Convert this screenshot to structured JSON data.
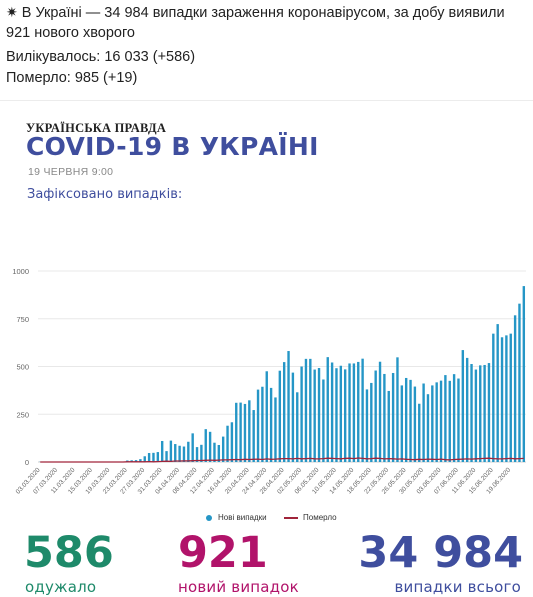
{
  "post": {
    "star": "✷",
    "headline": "В Україні — 34 984 випадки зараження коронавірусом, за добу виявили 921 нового хворого",
    "recovered_line": "Вилікувалось: 16 033 (+586)",
    "died_line": "Померло: 985 (+19)"
  },
  "infographic": {
    "brand": "УКРАЇНСЬКА ПРАВДА",
    "title": "COVID-19 В УКРАЇНІ",
    "date": "19 ЧЕРВНЯ 9:00",
    "subtitle": "Зафіксовано випадків:",
    "stats": {
      "recovered_value": "586",
      "recovered_label": "одужало",
      "new_value": "921",
      "new_label": "новий випадок",
      "total_value": "34 984",
      "total_label": "випадки всього"
    }
  },
  "colors": {
    "bar": "#2596c6",
    "deaths_line": "#a0243a",
    "title": "#3f4e9e",
    "recovered": "#1e8a6a",
    "new_cases": "#b1136a"
  },
  "chart_data": {
    "type": "bar",
    "title": "",
    "ylim": [
      0,
      1000
    ],
    "yticks": [
      0,
      250,
      500,
      750,
      1000
    ],
    "grid": true,
    "legend_position": "bottom-center",
    "x_start": "03.03.2020",
    "x_end": "19.06.2020",
    "xticks": [
      "03.03.2020",
      "07.03.2020",
      "11.03.2020",
      "15.03.2020",
      "19.03.2020",
      "23.03.2020",
      "27.03.2020",
      "31.03.2020",
      "04.04.2020",
      "08.04.2020",
      "12.04.2020",
      "16.04.2020",
      "20.04.2020",
      "24.04.2020",
      "28.04.2020",
      "02.05.2020",
      "06.05.2020",
      "10.05.2020",
      "14.05.2020",
      "18.05.2020",
      "22.05.2020",
      "26.05.2020",
      "30.05.2020",
      "03.06.2020",
      "07.06.2020",
      "11.06.2020",
      "15.06.2020",
      "19.06.2020"
    ],
    "series": [
      {
        "name": "Нові випадки",
        "values": [
          1,
          0,
          0,
          0,
          0,
          0,
          0,
          0,
          0,
          0,
          1,
          0,
          0,
          0,
          0,
          0,
          2,
          0,
          2,
          1,
          8,
          9,
          10,
          15,
          30,
          47,
          48,
          52,
          110,
          57,
          112,
          94,
          85,
          81,
          106,
          150,
          78,
          90,
          172,
          158,
          101,
          89,
          133,
          190,
          208,
          310,
          311,
          304,
          323,
          272,
          379,
          394,
          475,
          388,
          338,
          478,
          523,
          581,
          468,
          365,
          500,
          540,
          540,
          484,
          492,
          432,
          549,
          521,
          491,
          504,
          485,
          516,
          516,
          524,
          541,
          380,
          414,
          479,
          525,
          461,
          372,
          466,
          548,
          401,
          440,
          430,
          395,
          305,
          411,
          355,
          401,
          417,
          426,
          455,
          425,
          460,
          437,
          586,
          545,
          513,
          484,
          506,
          508,
          518,
          672,
          722,
          653,
          663,
          672,
          768,
          829,
          921
        ],
        "values_note": ""
      },
      {
        "name": "Померло",
        "values": [
          0,
          0,
          0,
          0,
          0,
          0,
          0,
          0,
          0,
          0,
          0,
          0,
          0,
          0,
          0,
          0,
          0,
          0,
          0,
          0,
          1,
          1,
          1,
          1,
          1,
          2,
          1,
          2,
          3,
          4,
          3,
          5,
          5,
          6,
          6,
          7,
          8,
          8,
          9,
          10,
          9,
          10,
          11,
          11,
          12,
          13,
          12,
          14,
          13,
          14,
          15,
          13,
          16,
          14,
          15,
          17,
          18,
          18,
          16,
          19,
          17,
          18,
          19,
          17,
          16,
          18,
          20,
          19,
          18,
          17,
          19,
          20,
          18,
          21,
          19,
          17,
          18,
          20,
          19,
          16,
          18,
          17,
          15,
          16,
          14,
          13,
          12,
          14,
          13,
          15,
          14,
          13,
          15,
          12,
          11,
          13,
          14,
          15,
          16,
          15,
          17,
          18,
          19,
          20,
          18,
          17,
          16,
          18,
          19,
          17,
          18,
          19
        ],
        "values_note": ""
      }
    ]
  }
}
